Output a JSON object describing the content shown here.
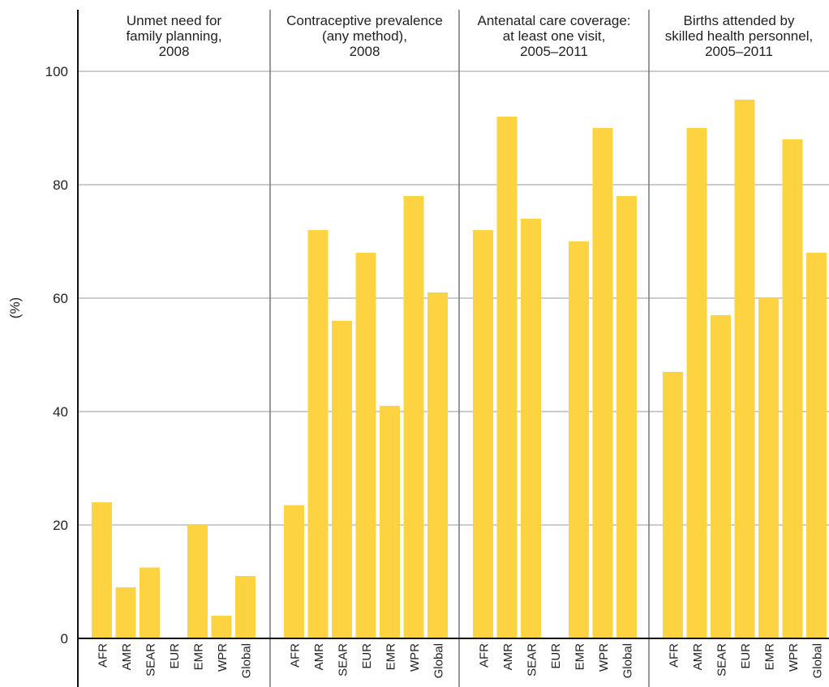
{
  "chart_data": {
    "type": "bar",
    "ylabel": "(%)",
    "ylim": [
      0,
      100
    ],
    "yticks": [
      "0",
      "20",
      "40",
      "60",
      "80",
      "100"
    ],
    "grid": true,
    "bar_color": "#FDD342",
    "categories": [
      "AFR",
      "AMR",
      "SEAR",
      "EUR",
      "EMR",
      "WPR",
      "Global"
    ],
    "panels": [
      {
        "title": [
          "Unmet need for",
          "family planning,",
          "2008"
        ],
        "values": [
          24,
          9,
          12.5,
          null,
          20,
          4,
          11
        ]
      },
      {
        "title": [
          "Contraceptive prevalence",
          "(any method),",
          "2008"
        ],
        "values": [
          23.5,
          72,
          56,
          68,
          41,
          78,
          61
        ]
      },
      {
        "title": [
          "Antenatal care coverage:",
          "at least one visit,",
          "2005–2011"
        ],
        "values": [
          72,
          92,
          74,
          null,
          70,
          90,
          78
        ]
      },
      {
        "title": [
          "Births attended by",
          "skilled health personnel,",
          "2005–2011"
        ],
        "values": [
          47,
          90,
          57,
          95,
          60,
          88,
          68
        ]
      }
    ]
  }
}
